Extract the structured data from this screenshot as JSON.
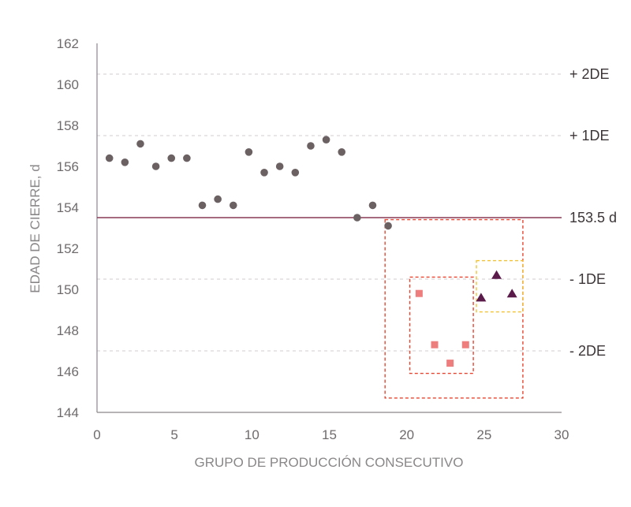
{
  "chart_data": {
    "type": "scatter",
    "xlabel": "GRUPO DE PRODUCCIÓN CONSECUTIVO",
    "ylabel": "EDAD DE CIERRE, d",
    "xlim": [
      0,
      30
    ],
    "ylim": [
      144,
      162
    ],
    "x_ticks": [
      0,
      5,
      10,
      15,
      20,
      25,
      30
    ],
    "y_ticks": [
      144,
      146,
      148,
      150,
      152,
      154,
      156,
      158,
      160,
      162
    ],
    "grid": "dashed reference lines only",
    "series": [
      {
        "marker": "circle",
        "color": "#6b6163",
        "points": [
          [
            0.8,
            156.4
          ],
          [
            1.8,
            156.2
          ],
          [
            2.8,
            157.1
          ],
          [
            3.8,
            156.0
          ],
          [
            4.8,
            156.4
          ],
          [
            5.8,
            156.4
          ],
          [
            6.8,
            154.1
          ],
          [
            7.8,
            154.4
          ],
          [
            8.8,
            154.1
          ],
          [
            9.8,
            156.7
          ],
          [
            10.8,
            155.7
          ],
          [
            11.8,
            156.0
          ],
          [
            12.8,
            155.7
          ],
          [
            13.8,
            157.0
          ],
          [
            14.8,
            157.3
          ],
          [
            15.8,
            156.7
          ],
          [
            16.8,
            153.5
          ],
          [
            17.8,
            154.1
          ],
          [
            18.8,
            153.1
          ]
        ]
      },
      {
        "marker": "square",
        "color": "#ee7d7d",
        "points": [
          [
            20.8,
            149.8
          ],
          [
            21.8,
            147.3
          ],
          [
            22.8,
            146.4
          ],
          [
            23.8,
            147.3
          ]
        ]
      },
      {
        "marker": "triangle",
        "color": "#5a1a4a",
        "points": [
          [
            24.8,
            149.6
          ],
          [
            25.8,
            150.7
          ],
          [
            26.8,
            149.8
          ]
        ]
      }
    ],
    "mean_line": {
      "y": 153.5,
      "label": "153.5 d",
      "color": "#8a3a55"
    },
    "reference_lines": [
      {
        "y": 160.5,
        "label": "+ 2DE"
      },
      {
        "y": 157.5,
        "label": "+ 1DE"
      },
      {
        "y": 150.5,
        "label": "- 1DE"
      },
      {
        "y": 147.0,
        "label": "- 2DE"
      }
    ],
    "highlight_boxes": [
      {
        "x": [
          18.6,
          27.5
        ],
        "y": [
          144.7,
          153.4
        ],
        "color": "#e8442f"
      },
      {
        "x": [
          20.2,
          24.3
        ],
        "y": [
          145.9,
          150.6
        ],
        "color": "#e8442f"
      },
      {
        "x": [
          24.5,
          27.5
        ],
        "y": [
          148.9,
          151.4
        ],
        "color": "#f2c233"
      }
    ]
  }
}
